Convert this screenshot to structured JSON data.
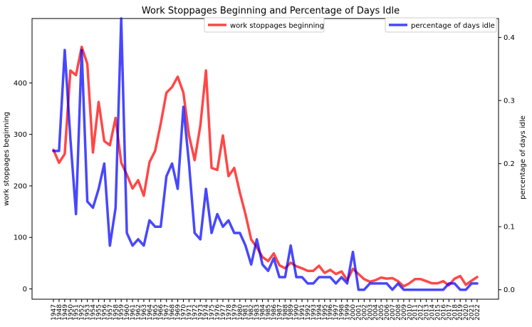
{
  "chart_data": {
    "type": "line",
    "title": "Work Stoppages Beginning and Percentage of Days Idle",
    "ylabel_left": "work stoppages beginning",
    "ylabel_right": "percentage of days idle",
    "ylim_left": [
      -20,
      525
    ],
    "ylim_right": [
      -0.015,
      0.43
    ],
    "yticks_left": [
      0,
      100,
      200,
      300,
      400
    ],
    "yticks_right": [
      "0.0",
      "0.1",
      "0.2",
      "0.3",
      "0.4"
    ],
    "legend_left_position": "top-center",
    "legend_right_position": "top-right",
    "grid": false,
    "x": [
      "1947",
      "1948",
      "1949",
      "1950",
      "1951",
      "1952",
      "1953",
      "1954",
      "1955",
      "1956",
      "1957",
      "1958",
      "1959",
      "1960",
      "1961",
      "1962",
      "1963",
      "1964",
      "1965",
      "1966",
      "1967",
      "1968",
      "1969",
      "1970",
      "1971",
      "1972",
      "1973",
      "1974",
      "1975",
      "1976",
      "1977",
      "1978",
      "1979",
      "1980",
      "1981",
      "1982",
      "1983",
      "1984",
      "1985",
      "1986",
      "1987",
      "1988",
      "1989",
      "1990",
      "1991",
      "1992",
      "1993",
      "1994",
      "1995",
      "1996",
      "1997",
      "1998",
      "1999",
      "2000",
      "2001",
      "2002",
      "2003",
      "2004",
      "2005",
      "2006",
      "2007",
      "2008",
      "2009",
      "2010",
      "2011",
      "2012",
      "2013",
      "2014",
      "2015",
      "2016",
      "2017",
      "2018",
      "2019",
      "2020",
      "2021",
      "2022"
    ],
    "series": [
      {
        "name": "work stoppages beginning",
        "axis": "left",
        "color": "#ff0000",
        "values": [
          270,
          245,
          262,
          424,
          415,
          470,
          437,
          265,
          363,
          287,
          279,
          332,
          245,
          222,
          195,
          211,
          181,
          246,
          268,
          321,
          381,
          392,
          412,
          381,
          298,
          250,
          317,
          424,
          235,
          231,
          298,
          219,
          235,
          187,
          145,
          96,
          81,
          62,
          54,
          69,
          46,
          40,
          51,
          44,
          40,
          35,
          35,
          45,
          31,
          37,
          29,
          34,
          17,
          39,
          29,
          19,
          14,
          17,
          22,
          20,
          21,
          15,
          5,
          11,
          19,
          19,
          15,
          11,
          11,
          15,
          7,
          20,
          25,
          8,
          16,
          23
        ]
      },
      {
        "name": "percentage of days idle",
        "axis": "right",
        "color": "#0000ff",
        "values": [
          0.22,
          0.22,
          0.38,
          0.24,
          0.12,
          0.38,
          0.14,
          0.13,
          0.16,
          0.2,
          0.07,
          0.13,
          0.43,
          0.09,
          0.07,
          0.08,
          0.07,
          0.11,
          0.1,
          0.1,
          0.18,
          0.2,
          0.16,
          0.29,
          0.2,
          0.09,
          0.08,
          0.16,
          0.09,
          0.12,
          0.1,
          0.11,
          0.09,
          0.09,
          0.07,
          0.04,
          0.08,
          0.04,
          0.03,
          0.05,
          0.02,
          0.02,
          0.07,
          0.02,
          0.02,
          0.01,
          0.01,
          0.02,
          0.02,
          0.02,
          0.01,
          0.02,
          0.01,
          0.06,
          0.0,
          0.0,
          0.01,
          0.01,
          0.01,
          0.01,
          0.0,
          0.01,
          0.0,
          0.0,
          0.0,
          0.0,
          0.0,
          0.0,
          0.0,
          0.0,
          0.01,
          0.01,
          0.0,
          0.0,
          0.01,
          0.01
        ]
      }
    ]
  }
}
